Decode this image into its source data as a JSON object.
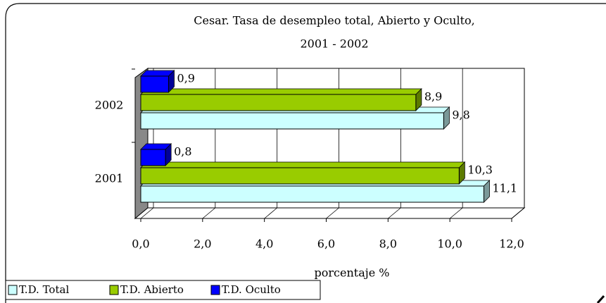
{
  "chart_data": {
    "type": "bar3d_horizontal",
    "title": [
      "Cesar. Tasa de desempleo total, Abierto y Oculto,",
      "2001 - 2002"
    ],
    "x_label": "porcentaje %",
    "categories": [
      "2001",
      "2002"
    ],
    "series": [
      {
        "name": "T.D. Total",
        "color": "#ccffff",
        "values": [
          11.1,
          9.8
        ],
        "value_labels": [
          "11,1",
          "9,8"
        ]
      },
      {
        "name": "T.D. Abierto",
        "color": "#99cc00",
        "values": [
          10.3,
          8.9
        ],
        "value_labels": [
          "10,3",
          "8,9"
        ]
      },
      {
        "name": "T.D. Oculto",
        "color": "#0000ff",
        "values": [
          0.8,
          0.9
        ],
        "value_labels": [
          "0,8",
          "0,9"
        ]
      }
    ],
    "xlim": [
      0,
      12
    ],
    "xticks": [
      {
        "value": 0,
        "label": "0,0"
      },
      {
        "value": 2,
        "label": "2,0"
      },
      {
        "value": 4,
        "label": "4,0"
      },
      {
        "value": 6,
        "label": "6,0"
      },
      {
        "value": 8,
        "label": "8,0"
      },
      {
        "value": 10,
        "label": "10,0"
      },
      {
        "value": 12,
        "label": "12,0"
      }
    ],
    "grid": true,
    "legend": "bottom-left"
  }
}
